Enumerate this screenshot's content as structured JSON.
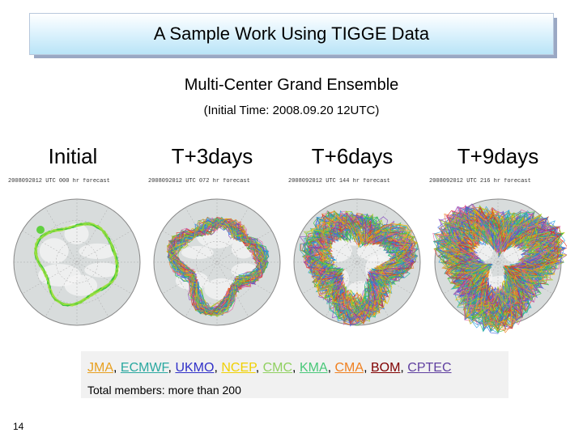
{
  "slide": {
    "title": "A Sample Work Using TIGGE Data",
    "subtitle": "Multi-Center Grand Ensemble",
    "initial_time": "(Initial Time: 2008.09.20 12UTC)",
    "page_number": "14"
  },
  "panels": [
    {
      "label": "Initial",
      "date": "2008092012 UTC",
      "forecast": "000 hr forecast",
      "lead_days": 0
    },
    {
      "label": "T+3days",
      "date": "2008092012 UTC",
      "forecast": "072 hr forecast",
      "lead_days": 3
    },
    {
      "label": "T+6days",
      "date": "2008092012 UTC",
      "forecast": "144 hr forecast",
      "lead_days": 6
    },
    {
      "label": "T+9days",
      "date": "2008092012 UTC",
      "forecast": "216 hr forecast",
      "lead_days": 9
    }
  ],
  "centers": [
    {
      "name": "JMA",
      "color": "#e8a020"
    },
    {
      "name": "ECMWF",
      "color": "#2aa8a0"
    },
    {
      "name": "UKMO",
      "color": "#3030c8"
    },
    {
      "name": "NCEP",
      "color": "#f0d000"
    },
    {
      "name": "CMC",
      "color": "#90d060"
    },
    {
      "name": "KMA",
      "color": "#48c878"
    },
    {
      "name": "CMA",
      "color": "#f08020"
    },
    {
      "name": "BOM",
      "color": "#800000"
    },
    {
      "name": "CPTEC",
      "color": "#6040a0"
    }
  ],
  "members_text": "Total members: more than 200",
  "palette": [
    "#1fa0e0",
    "#30c040",
    "#e03020",
    "#f0c000",
    "#8040c0",
    "#e060a0",
    "#20b0a0",
    "#f08020",
    "#4060e0",
    "#a0d020"
  ]
}
